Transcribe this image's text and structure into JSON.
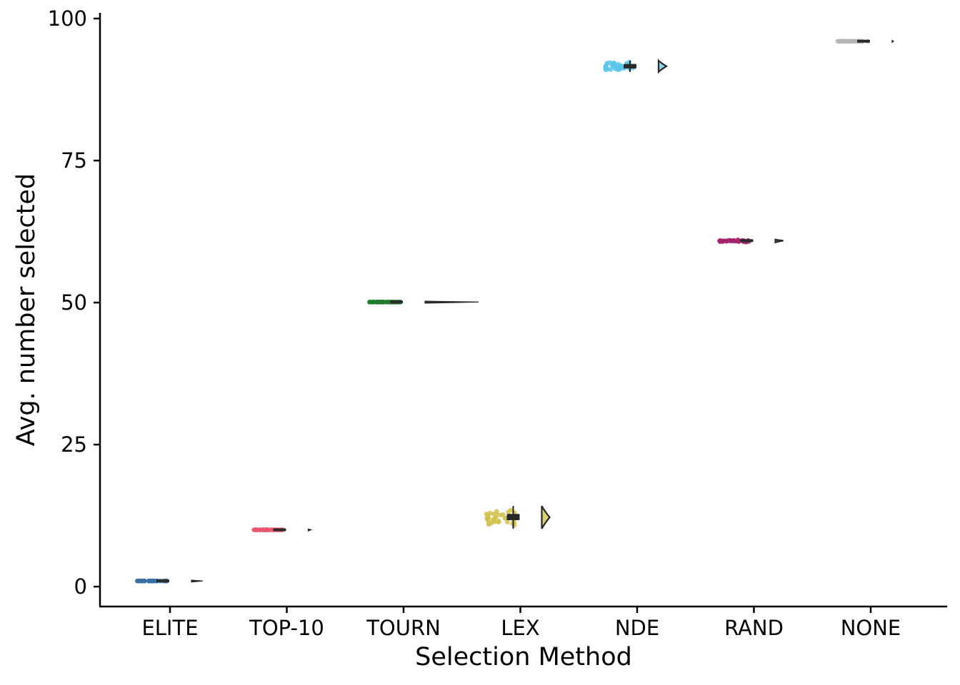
{
  "chart_data": {
    "type": "raincloud",
    "title": "",
    "xlabel": "Selection Method",
    "ylabel": "Avg. number selected",
    "ylim": [
      -3.5,
      101
    ],
    "yticks": [
      0,
      25,
      50,
      75,
      100
    ],
    "categories": [
      "ELITE",
      "TOP-10",
      "TOURN",
      "LEX",
      "NDE",
      "RAND",
      "NONE"
    ],
    "series": [
      {
        "category": "ELITE",
        "median": 1.0,
        "q1": 0.95,
        "q3": 1.05,
        "min": 0.9,
        "max": 1.1,
        "color": "#3a6ea5"
      },
      {
        "category": "TOP-10",
        "median": 10.0,
        "q1": 9.95,
        "q3": 10.05,
        "min": 9.9,
        "max": 10.1,
        "color": "#e8566b"
      },
      {
        "category": "TOURN",
        "median": 50.1,
        "q1": 50.0,
        "q3": 50.2,
        "min": 49.9,
        "max": 50.3,
        "color": "#1e7b2c"
      },
      {
        "category": "LEX",
        "median": 12.2,
        "q1": 11.7,
        "q3": 12.8,
        "min": 10.2,
        "max": 14.2,
        "color": "#d1c14a"
      },
      {
        "category": "NDE",
        "median": 91.6,
        "q1": 91.2,
        "q3": 92.0,
        "min": 90.6,
        "max": 92.6,
        "color": "#5bc6ea"
      },
      {
        "category": "RAND",
        "median": 60.9,
        "q1": 60.8,
        "q3": 61.0,
        "min": 60.6,
        "max": 61.1,
        "color": "#a3246c"
      },
      {
        "category": "NONE",
        "median": 96.0,
        "q1": 95.95,
        "q3": 96.05,
        "min": 95.9,
        "max": 96.1,
        "color": "#b5b5b5"
      }
    ]
  }
}
